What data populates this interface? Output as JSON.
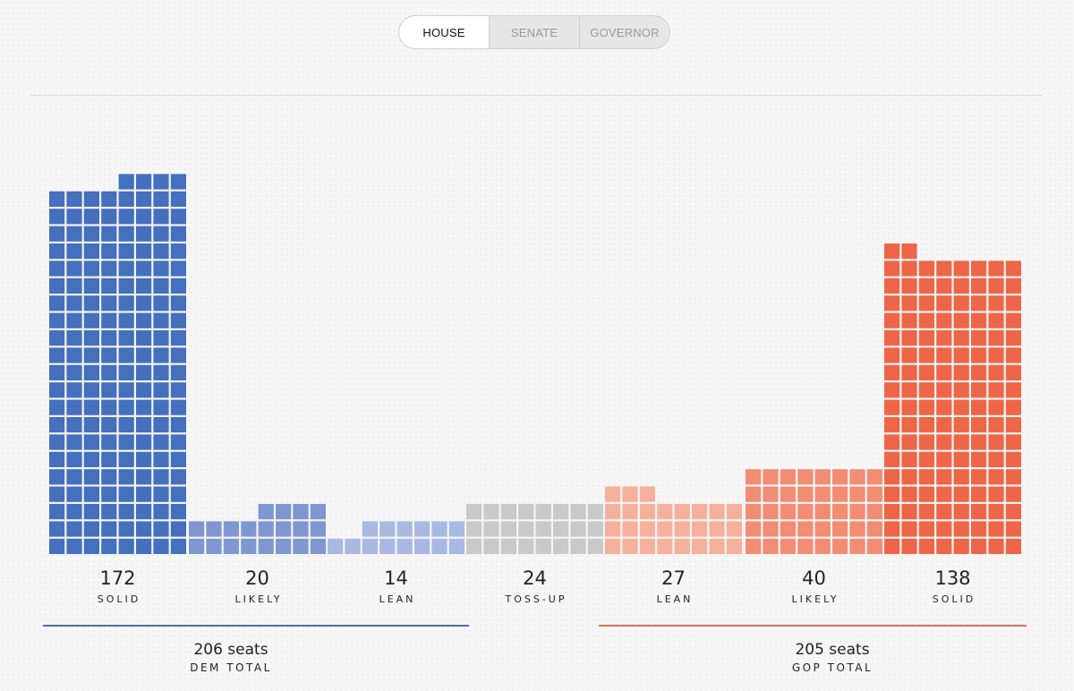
{
  "tabs": [
    {
      "label": "HOUSE",
      "active": true
    },
    {
      "label": "SENATE",
      "active": false
    },
    {
      "label": "GOVERNOR",
      "active": false
    }
  ],
  "chart_data": {
    "type": "bar",
    "categories": [
      "SOLID",
      "LIKELY",
      "LEAN",
      "TOSS-UP",
      "LEAN",
      "LIKELY",
      "SOLID"
    ],
    "values": [
      172,
      20,
      14,
      24,
      27,
      40,
      138
    ],
    "value_labels": [
      "172",
      "20",
      "14",
      "24",
      "27",
      "40",
      "138"
    ],
    "colors": [
      "#4470bd",
      "#7f97d1",
      "#a9b8e3",
      "#c9c9c9",
      "#f5b09b",
      "#f28c72",
      "#ee6647"
    ],
    "fill_from": [
      "right",
      "right",
      "right",
      "left",
      "left",
      "left",
      "left"
    ],
    "units_per_row": 8
  },
  "totals": {
    "dem": {
      "seats": "206 seats",
      "label": "DEM TOTAL",
      "color": "#4a6fa5"
    },
    "gop": {
      "seats": "205 seats",
      "label": "GOP TOTAL",
      "color": "#e86a5a"
    }
  }
}
